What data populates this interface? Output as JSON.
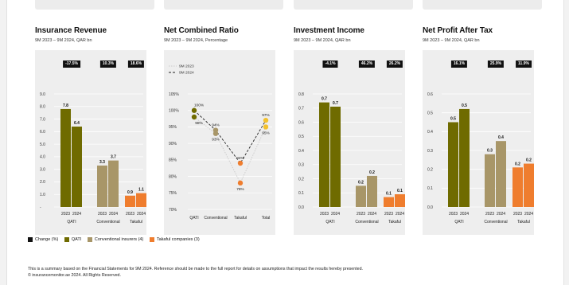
{
  "colors": {
    "qati": "#6f6b00",
    "conventional": "#a89668",
    "takaful": "#ef7d2e",
    "change": "#111111",
    "grid": "#ffffff"
  },
  "legend": [
    {
      "label": "Change (%)",
      "key": "change"
    },
    {
      "label": "QATI",
      "key": "qati"
    },
    {
      "label": "Conventional insurers (4)",
      "key": "conventional"
    },
    {
      "label": "Takaful companies (3)",
      "key": "takaful"
    }
  ],
  "footer": {
    "line1": "This is a summary based on the Financial Statements for 9M 2024. Reference should be made to the full report for details on assumptions that impact the results hereby presented.",
    "line2": "© insurancemonitor.ae 2024. All Rights Reserved."
  },
  "chart_data": [
    {
      "type": "bar",
      "title": "Insurance Revenue",
      "subtitle": "9M 2023 – 9M 2024, QAR bn",
      "categories": [
        "QATI",
        "Conventional",
        "Takaful"
      ],
      "years": [
        "2023",
        "2024"
      ],
      "values": [
        [
          7.8,
          6.4
        ],
        [
          3.3,
          3.7
        ],
        [
          0.9,
          1.1
        ]
      ],
      "value_labels": [
        [
          "7.8",
          "6.4"
        ],
        [
          "3.3",
          "3.7"
        ],
        [
          "0.9",
          "1.1"
        ]
      ],
      "changes": [
        "-17.5%",
        "10.3%",
        "18.6%"
      ],
      "ylim": [
        0,
        9
      ],
      "yticks": [
        0,
        1,
        2,
        3,
        4,
        5,
        6,
        7,
        8,
        9
      ],
      "ytick_labels": [
        "-",
        "1.0",
        "2.0",
        "3.0",
        "4.0",
        "5.0",
        "6.0",
        "7.0",
        "8.0",
        "9.0"
      ],
      "grid": true
    },
    {
      "type": "line",
      "title": "Net Combined Ratio",
      "subtitle": "9M 2023 – 9M 2024, Percentage",
      "categories": [
        "QATI",
        "Conventional",
        "Takaful",
        "Total"
      ],
      "series": [
        {
          "name": "9M 2023",
          "values": [
            98,
            93,
            78,
            95
          ],
          "labels": [
            "98%",
            "93%",
            "78%",
            "95%"
          ]
        },
        {
          "name": "9M 2024",
          "values": [
            100,
            94,
            84,
            97
          ],
          "labels": [
            "100%",
            "94%",
            "84%",
            "97%"
          ]
        }
      ],
      "ylim": [
        70,
        105
      ],
      "yticks": [
        70,
        75,
        80,
        85,
        90,
        95,
        100,
        105
      ],
      "ytick_labels": [
        "70%",
        "75%",
        "80%",
        "85%",
        "90%",
        "95%",
        "100%",
        "105%"
      ],
      "legend_position": "top-left",
      "grid": true
    },
    {
      "type": "bar",
      "title": "Investment Income",
      "subtitle": "9M 2023 – 9M 2024, QAR bn",
      "categories": [
        "QATI",
        "Conventional",
        "Takaful"
      ],
      "years": [
        "2023",
        "2024"
      ],
      "values": [
        [
          0.74,
          0.71
        ],
        [
          0.15,
          0.22
        ],
        [
          0.07,
          0.09
        ]
      ],
      "value_labels": [
        [
          "0.7",
          "0.7"
        ],
        [
          "0.2",
          "0.2"
        ],
        [
          "0.1",
          "0.1"
        ]
      ],
      "changes": [
        "-4.1%",
        "46.2%",
        "26.2%"
      ],
      "ylim": [
        0,
        0.8
      ],
      "yticks": [
        0,
        0.1,
        0.2,
        0.3,
        0.4,
        0.5,
        0.6,
        0.7,
        0.8
      ],
      "ytick_labels": [
        "0.0",
        "0.1",
        "0.2",
        "0.3",
        "0.4",
        "0.5",
        "0.6",
        "0.7",
        "0.8"
      ],
      "grid": true
    },
    {
      "type": "bar",
      "title": "Net Profit After Tax",
      "subtitle": "9M 2023 – 9M 2024, QAR bn",
      "categories": [
        "QATI",
        "Conventional",
        "Takaful"
      ],
      "years": [
        "2023",
        "2024"
      ],
      "values": [
        [
          0.45,
          0.52
        ],
        [
          0.28,
          0.35
        ],
        [
          0.21,
          0.23
        ]
      ],
      "value_labels": [
        [
          "0.5",
          "0.5"
        ],
        [
          "0.3",
          "0.4"
        ],
        [
          "0.2",
          "0.2"
        ]
      ],
      "changes": [
        "16.1%",
        "25.9%",
        "11.9%"
      ],
      "ylim": [
        0,
        0.6
      ],
      "yticks": [
        0,
        0.1,
        0.2,
        0.3,
        0.4,
        0.5,
        0.6
      ],
      "ytick_labels": [
        "0.0",
        "0.1",
        "0.2",
        "0.3",
        "0.4",
        "0.5",
        "0.6"
      ],
      "grid": true
    }
  ]
}
